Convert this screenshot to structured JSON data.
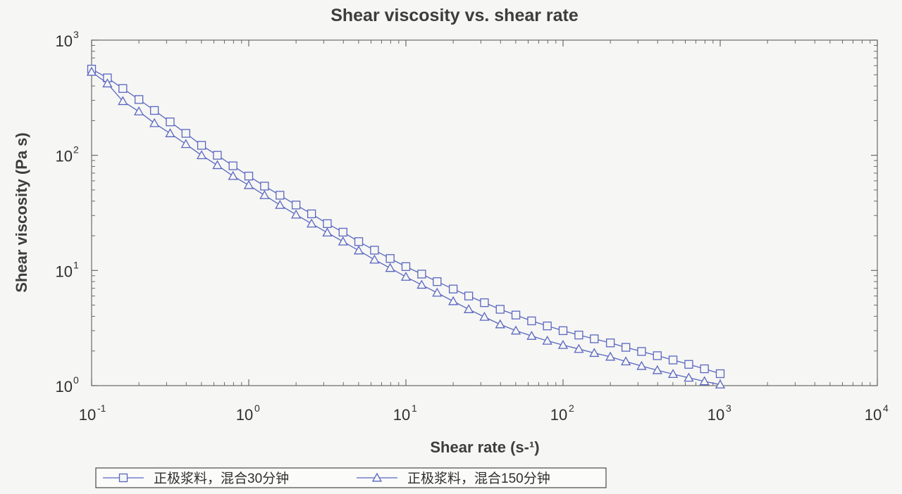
{
  "chart_data": {
    "type": "line",
    "title": "Shear viscosity vs. shear rate",
    "xlabel": "Shear rate (s-¹)",
    "ylabel": "Shear viscosity (Pa s)",
    "x_scale": "log",
    "y_scale": "log",
    "xlim": [
      0.1,
      10000
    ],
    "ylim": [
      1,
      1000
    ],
    "x_ticks": [
      {
        "base": "10",
        "exp": "-1",
        "value": 0.1
      },
      {
        "base": "10",
        "exp": "0",
        "value": 1
      },
      {
        "base": "10",
        "exp": "1",
        "value": 10
      },
      {
        "base": "10",
        "exp": "2",
        "value": 100
      },
      {
        "base": "10",
        "exp": "3",
        "value": 1000
      },
      {
        "base": "10",
        "exp": "4",
        "value": 10000
      }
    ],
    "y_ticks": [
      {
        "base": "10",
        "exp": "0",
        "value": 1
      },
      {
        "base": "10",
        "exp": "1",
        "value": 10
      },
      {
        "base": "10",
        "exp": "2",
        "value": 100
      },
      {
        "base": "10",
        "exp": "3",
        "value": 1000
      }
    ],
    "grid": false,
    "legend_position": "bottom-left",
    "series": [
      {
        "name": "正极浆料，混合30分钟",
        "marker": "square",
        "color": "#5a67c0",
        "x": [
          0.1,
          0.126,
          0.158,
          0.2,
          0.251,
          0.316,
          0.398,
          0.501,
          0.631,
          0.794,
          1,
          1.26,
          1.58,
          2,
          2.51,
          3.16,
          3.98,
          5.01,
          6.31,
          7.94,
          10,
          12.6,
          15.8,
          20,
          25.1,
          31.6,
          39.8,
          50.1,
          63.1,
          79.4,
          100,
          126,
          158,
          200,
          251,
          316,
          398,
          501,
          631,
          794,
          1000
        ],
        "y": [
          560,
          470,
          380,
          305,
          245,
          195,
          155,
          122,
          100,
          81,
          66,
          54,
          45,
          37,
          31,
          25.5,
          21.5,
          17.8,
          15,
          12.7,
          10.8,
          9.3,
          8.0,
          6.9,
          6.0,
          5.25,
          4.6,
          4.1,
          3.65,
          3.3,
          3.0,
          2.75,
          2.55,
          2.35,
          2.15,
          1.98,
          1.82,
          1.67,
          1.53,
          1.4,
          1.27
        ]
      },
      {
        "name": "正极浆料，混合150分钟",
        "marker": "triangle",
        "color": "#5a67c0",
        "x": [
          0.1,
          0.126,
          0.158,
          0.2,
          0.251,
          0.316,
          0.398,
          0.501,
          0.631,
          0.794,
          1,
          1.26,
          1.58,
          2,
          2.51,
          3.16,
          3.98,
          5.01,
          6.31,
          7.94,
          10,
          12.6,
          15.8,
          20,
          25.1,
          31.6,
          39.8,
          50.1,
          63.1,
          79.4,
          100,
          126,
          158,
          200,
          251,
          316,
          398,
          501,
          631,
          794,
          1000
        ],
        "y": [
          530,
          420,
          295,
          240,
          190,
          155,
          125,
          100,
          82,
          66,
          55,
          45,
          37,
          30.5,
          25.5,
          21.3,
          17.8,
          14.9,
          12.4,
          10.5,
          8.8,
          7.5,
          6.4,
          5.4,
          4.6,
          3.95,
          3.4,
          3.0,
          2.7,
          2.45,
          2.25,
          2.08,
          1.92,
          1.78,
          1.62,
          1.48,
          1.36,
          1.26,
          1.17,
          1.09,
          1.02
        ]
      }
    ]
  }
}
